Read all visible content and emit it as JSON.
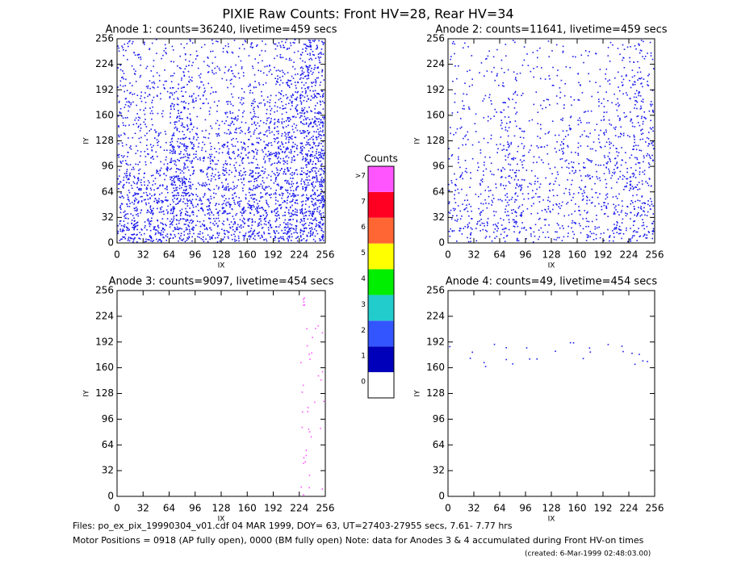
{
  "title": "PIXIE Raw Counts:  Front HV=28, Rear HV=34",
  "chart_data": [
    {
      "type": "heatmap",
      "title": "Anode 1: counts=36240, livetime=459 secs",
      "xlabel": "IX",
      "ylabel": "IY",
      "xlim": [
        0,
        256
      ],
      "ylim": [
        0,
        256
      ],
      "xticks": [
        0,
        32,
        64,
        96,
        128,
        160,
        192,
        224,
        256
      ],
      "yticks": [
        0,
        32,
        64,
        96,
        128,
        160,
        192,
        224,
        256
      ],
      "color": "#1a1aee",
      "values": [
        [
          0.5,
          0.45,
          0.5,
          0.35,
          0.4,
          0.45,
          0.5,
          0.6
        ],
        [
          0.4,
          0.4,
          0.55,
          0.35,
          0.4,
          0.45,
          0.5,
          0.65
        ],
        [
          0.35,
          0.3,
          0.55,
          0.3,
          0.35,
          0.4,
          0.45,
          0.6
        ],
        [
          0.2,
          0.2,
          0.5,
          0.25,
          0.35,
          0.35,
          0.45,
          0.6
        ],
        [
          0.2,
          0.15,
          0.35,
          0.15,
          0.25,
          0.3,
          0.4,
          0.55
        ],
        [
          0.2,
          0.15,
          0.3,
          0.15,
          0.15,
          0.2,
          0.3,
          0.45
        ],
        [
          0.15,
          0.15,
          0.2,
          0.15,
          0.15,
          0.15,
          0.25,
          0.4
        ],
        [
          0.15,
          0.1,
          0.1,
          0.1,
          0.1,
          0.1,
          0.2,
          0.35
        ]
      ]
    },
    {
      "type": "heatmap",
      "title": "Anode 2: counts=11641, livetime=459 secs",
      "xlabel": "IX",
      "ylabel": "IY",
      "xlim": [
        0,
        256
      ],
      "ylim": [
        0,
        256
      ],
      "xticks": [
        0,
        32,
        64,
        96,
        128,
        160,
        192,
        224,
        256
      ],
      "yticks": [
        0,
        32,
        64,
        96,
        128,
        160,
        192,
        224,
        256
      ],
      "color": "#1a1aee",
      "values": [
        [
          0.2,
          0.2,
          0.22,
          0.15,
          0.15,
          0.18,
          0.2,
          0.25
        ],
        [
          0.18,
          0.15,
          0.25,
          0.15,
          0.15,
          0.18,
          0.22,
          0.28
        ],
        [
          0.15,
          0.12,
          0.25,
          0.12,
          0.14,
          0.16,
          0.2,
          0.25
        ],
        [
          0.08,
          0.08,
          0.22,
          0.1,
          0.14,
          0.14,
          0.2,
          0.25
        ],
        [
          0.08,
          0.06,
          0.15,
          0.06,
          0.1,
          0.12,
          0.18,
          0.22
        ],
        [
          0.08,
          0.06,
          0.12,
          0.06,
          0.06,
          0.08,
          0.12,
          0.2
        ],
        [
          0.06,
          0.06,
          0.08,
          0.06,
          0.06,
          0.06,
          0.1,
          0.16
        ],
        [
          0.06,
          0.04,
          0.04,
          0.04,
          0.04,
          0.04,
          0.08,
          0.14
        ]
      ]
    },
    {
      "type": "heatmap",
      "title": "Anode 3: counts=9097, livetime=454 secs",
      "xlabel": "IX",
      "ylabel": "IY",
      "xlim": [
        0,
        256
      ],
      "ylim": [
        0,
        256
      ],
      "xticks": [
        0,
        32,
        64,
        96,
        128,
        160,
        192,
        224,
        256
      ],
      "yticks": [
        0,
        32,
        64,
        96,
        128,
        160,
        192,
        224,
        256
      ],
      "color": "#ff55ff",
      "values": [
        [
          0,
          0,
          0,
          0,
          0,
          0,
          0,
          0.03
        ],
        [
          0,
          0,
          0,
          0,
          0,
          0,
          0,
          0.03
        ],
        [
          0,
          0,
          0,
          0,
          0,
          0,
          0,
          0.03
        ],
        [
          0,
          0,
          0,
          0,
          0,
          0,
          0,
          0.03
        ],
        [
          0,
          0,
          0,
          0,
          0,
          0,
          0,
          0.03
        ],
        [
          0,
          0,
          0,
          0,
          0,
          0,
          0,
          0.03
        ],
        [
          0,
          0,
          0,
          0,
          0,
          0,
          0,
          0.03
        ],
        [
          0,
          0,
          0,
          0,
          0,
          0,
          0,
          0.03
        ]
      ]
    },
    {
      "type": "heatmap",
      "title": "Anode 4: counts=49, livetime=454 secs",
      "xlabel": "IX",
      "ylabel": "IY",
      "xlim": [
        0,
        256
      ],
      "ylim": [
        0,
        256
      ],
      "xticks": [
        0,
        32,
        64,
        96,
        128,
        160,
        192,
        224,
        256
      ],
      "yticks": [
        0,
        32,
        64,
        96,
        128,
        160,
        192,
        224,
        256
      ],
      "color": "#1a1aee",
      "values": [
        [
          0,
          0,
          0,
          0,
          0,
          0,
          0,
          0
        ],
        [
          0,
          0,
          0,
          0,
          0,
          0,
          0,
          0
        ],
        [
          0,
          0,
          0,
          0,
          0,
          0,
          0,
          0
        ],
        [
          0,
          0,
          0,
          0,
          0,
          0,
          0,
          0
        ],
        [
          0,
          0,
          0,
          0,
          0,
          0,
          0,
          0
        ],
        [
          0.02,
          0.02,
          0.02,
          0.02,
          0.02,
          0.02,
          0.02,
          0.03
        ],
        [
          0,
          0,
          0,
          0,
          0,
          0,
          0,
          0
        ],
        [
          0,
          0,
          0,
          0,
          0,
          0,
          0,
          0
        ]
      ]
    }
  ],
  "colorbar": {
    "title": "Counts",
    "ticks": [
      0,
      1,
      2,
      3,
      4,
      5,
      6,
      7,
      {
        "value": 8,
        "label": ">7"
      }
    ],
    "colors": [
      "#ffffff",
      "#0000bb",
      "#3355ff",
      "#22cccc",
      "#00ee00",
      "#ffff00",
      "#ff6633",
      "#ff0022",
      "#ff55ff"
    ]
  },
  "footer": [
    "Files: po_ex_pix_19990304_v01.cdf    04 MAR 1999, DOY= 63, UT=27403-27955 secs,  7.61- 7.77 hrs",
    "Motor Positions = 0918 (AP fully open), 0000 (BM fully open)    Note: data for Anodes 3 & 4 accumulated during Front HV-on times",
    "(created:  6-Mar-1999 02:48:03.00)"
  ]
}
